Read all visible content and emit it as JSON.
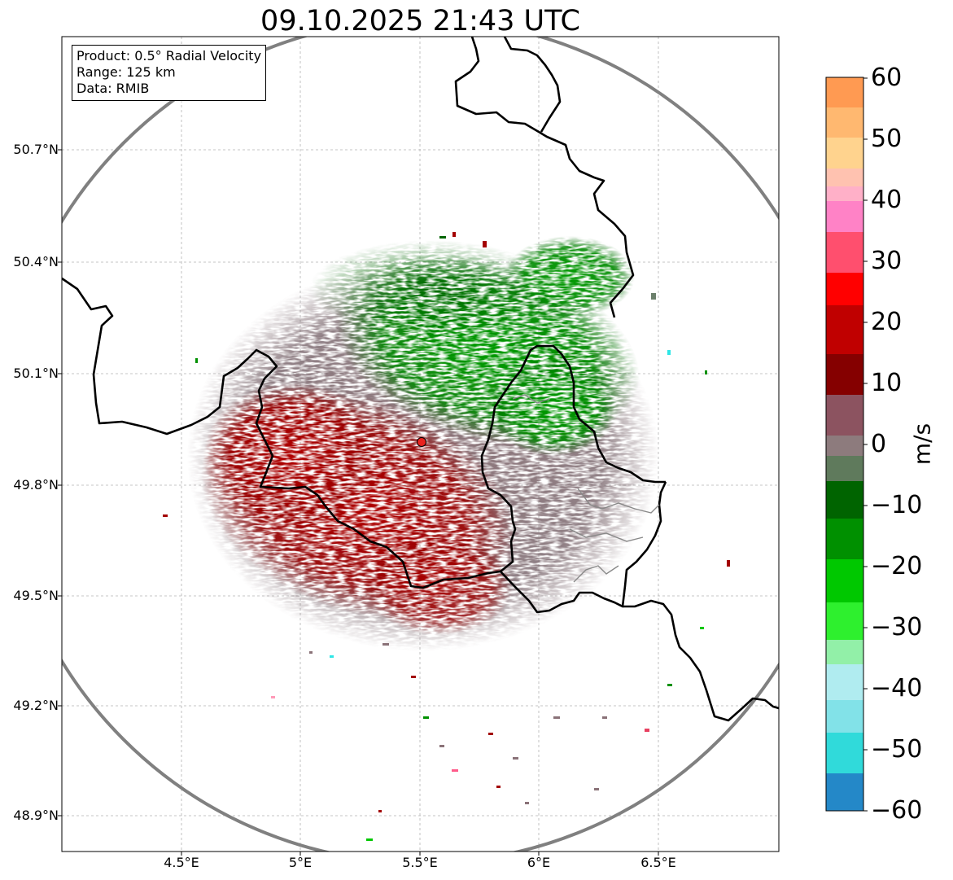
{
  "title": "09.10.2025 21:43 UTC",
  "info_box": {
    "product": "Product: 0.5° Radial Velocity",
    "range": "Range: 125 km",
    "source": "Data: RMIB"
  },
  "axes": {
    "x_ticks": [
      "4.5°E",
      "5°E",
      "5.5°E",
      "6°E",
      "6.5°E"
    ],
    "y_ticks": [
      "50.7°N",
      "50.4°N",
      "50.1°N",
      "49.8°N",
      "49.5°N",
      "49.2°N",
      "48.9°N"
    ],
    "lon_range": [
      4.0,
      7.0
    ],
    "lat_range": [
      48.8,
      51.0
    ]
  },
  "colorbar": {
    "label": "m/s",
    "ticks": [
      "60",
      "50",
      "40",
      "30",
      "20",
      "10",
      "0",
      "−10",
      "−20",
      "−30",
      "−40",
      "−50",
      "−60"
    ],
    "range": [
      -60,
      60
    ]
  },
  "radar": {
    "site_lon": 5.505,
    "site_lat": 49.914,
    "range_km": 125,
    "site_color": "#e8231f",
    "ring_color": "#808080"
  },
  "colors": {
    "outbound": "#a30000",
    "inbound": "#009100",
    "zero_mix": "#8a7278",
    "border": "#000000"
  }
}
